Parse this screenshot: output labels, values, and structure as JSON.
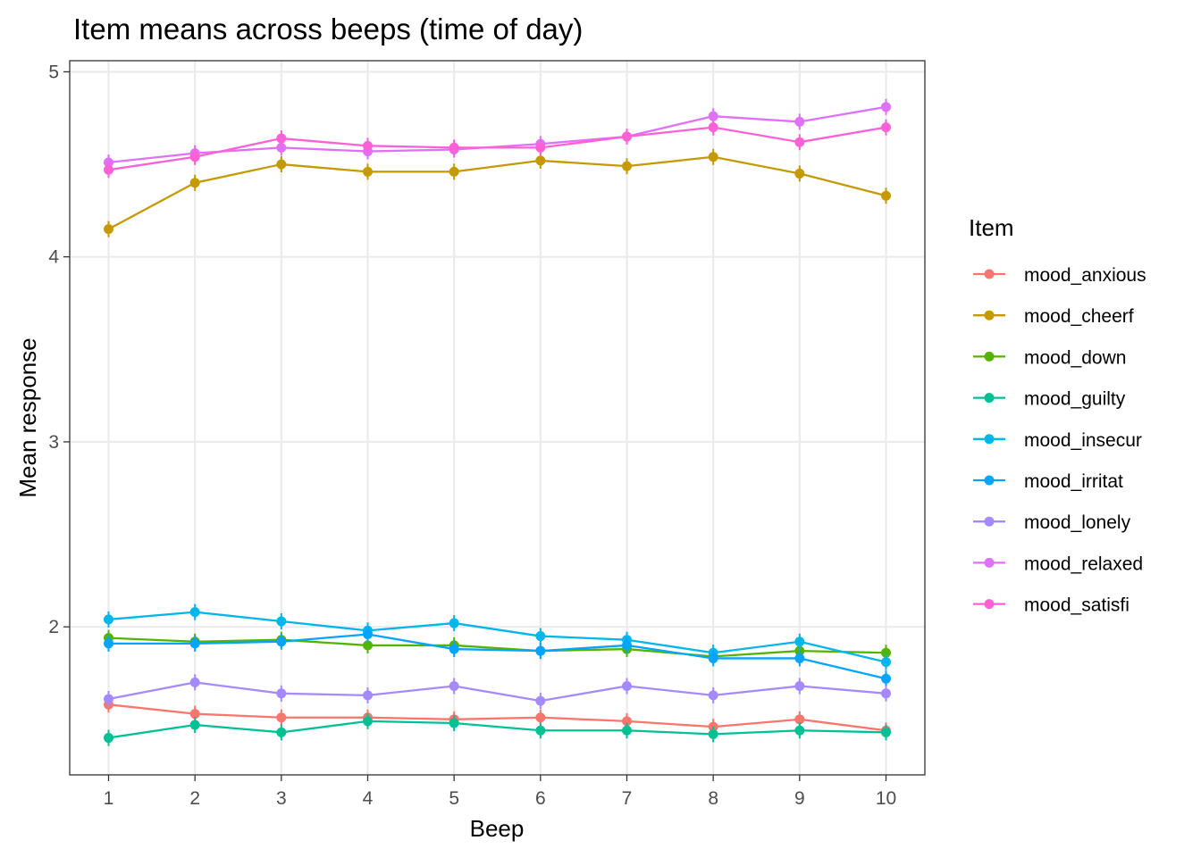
{
  "chart_data": {
    "type": "line",
    "title": "Item means across beeps (time of day)",
    "xlabel": "Beep",
    "ylabel": "Mean response",
    "x": [
      1,
      2,
      3,
      4,
      5,
      6,
      7,
      8,
      9,
      10
    ],
    "xticks": [
      "1",
      "2",
      "3",
      "4",
      "5",
      "6",
      "7",
      "8",
      "9",
      "10"
    ],
    "yticks": [
      "2",
      "3",
      "4",
      "5"
    ],
    "ylim": [
      1.2,
      5.0
    ],
    "grid": true,
    "legend": {
      "title": "Item",
      "position": "right"
    },
    "series": [
      {
        "name": "mood_anxious",
        "color": "#F8766D",
        "values": [
          1.58,
          1.53,
          1.51,
          1.51,
          1.5,
          1.51,
          1.49,
          1.46,
          1.5,
          1.44
        ]
      },
      {
        "name": "mood_cheerf",
        "color": "#C49A00",
        "values": [
          4.15,
          4.4,
          4.5,
          4.46,
          4.46,
          4.52,
          4.49,
          4.54,
          4.45,
          4.33
        ]
      },
      {
        "name": "mood_down",
        "color": "#53B400",
        "values": [
          1.94,
          1.92,
          1.93,
          1.9,
          1.9,
          1.87,
          1.88,
          1.84,
          1.87,
          1.86
        ]
      },
      {
        "name": "mood_guilty",
        "color": "#00C094",
        "values": [
          1.4,
          1.47,
          1.43,
          1.49,
          1.48,
          1.44,
          1.44,
          1.42,
          1.44,
          1.43
        ]
      },
      {
        "name": "mood_insecur",
        "color": "#00B6EB",
        "values": [
          2.04,
          2.08,
          2.03,
          1.98,
          2.02,
          1.95,
          1.93,
          1.86,
          1.92,
          1.81
        ]
      },
      {
        "name": "mood_irritat",
        "color": "#06A4FF",
        "values": [
          1.91,
          1.91,
          1.92,
          1.96,
          1.88,
          1.87,
          1.9,
          1.83,
          1.83,
          1.72
        ]
      },
      {
        "name": "mood_lonely",
        "color": "#A58AFF",
        "values": [
          1.61,
          1.7,
          1.64,
          1.63,
          1.68,
          1.6,
          1.68,
          1.63,
          1.68,
          1.64
        ]
      },
      {
        "name": "mood_relaxed",
        "color": "#DF70F8",
        "values": [
          4.51,
          4.56,
          4.59,
          4.57,
          4.58,
          4.61,
          4.65,
          4.76,
          4.73,
          4.81
        ]
      },
      {
        "name": "mood_satisfi",
        "color": "#FB61D7",
        "values": [
          4.47,
          4.54,
          4.64,
          4.6,
          4.59,
          4.59,
          4.65,
          4.7,
          4.62,
          4.7
        ]
      }
    ]
  }
}
